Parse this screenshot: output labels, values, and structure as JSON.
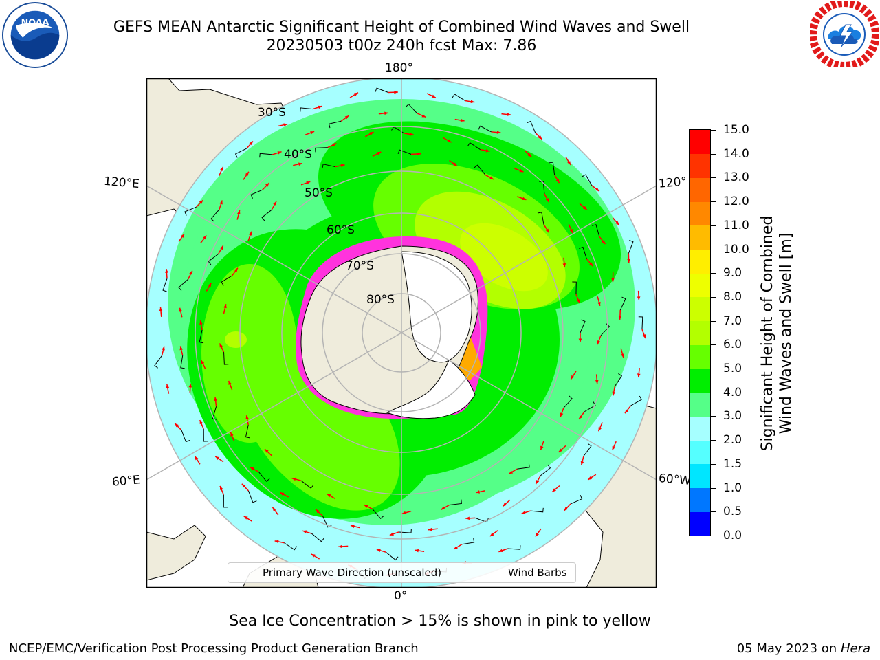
{
  "header": {
    "title_line1": "GEFS MEAN Antarctic Significant Height of Combined Wind Waves and Swell",
    "title_line2": "20230503 t00z 240h fcst   Max: 7.86"
  },
  "map": {
    "projection": "south polar stereographic",
    "longitude_labels": [
      "180°",
      "120°E",
      "120°",
      "60°E",
      "60°W",
      "0°"
    ],
    "latitude_labels": [
      "30°S",
      "40°S",
      "50°S",
      "60°S",
      "70°S",
      "80°S"
    ],
    "colors": {
      "land": "#efecdc",
      "ice_sheet": "#ffffff",
      "sea_ice_edge": "#ff33dd",
      "arrow": "#ff0000",
      "barb": "#000000",
      "grid": "#b4b4b4"
    }
  },
  "colorbar": {
    "label_line1": "Significant Height of Combined",
    "label_line2": "Wind Waves and Swell [m]",
    "ticks": [
      "0.0",
      "0.5",
      "1.0",
      "1.5",
      "2.0",
      "3.0",
      "4.0",
      "5.0",
      "6.0",
      "7.0",
      "8.0",
      "9.0",
      "10.0",
      "11.0",
      "12.0",
      "13.0",
      "14.0",
      "15.0"
    ],
    "colors": [
      "#0000ff",
      "#0077ff",
      "#00e6ff",
      "#55ffff",
      "#a6ffff",
      "#55ff88",
      "#00ee00",
      "#66ff00",
      "#b3ff00",
      "#ccff00",
      "#eeff00",
      "#ffee00",
      "#ffbb00",
      "#ff8800",
      "#ff6600",
      "#ff3300",
      "#ff0000"
    ]
  },
  "legend": {
    "wave_direction": "Primary Wave Direction (unscaled)",
    "wind_barbs": "Wind Barbs"
  },
  "subtitle": "Sea Ice Concentration > 15% is shown in pink to yellow",
  "footer": {
    "left": "NCEP/EMC/Verification Post Processing Product Generation Branch",
    "right_date": "05 May 2023 on",
    "right_host": "Hera"
  }
}
